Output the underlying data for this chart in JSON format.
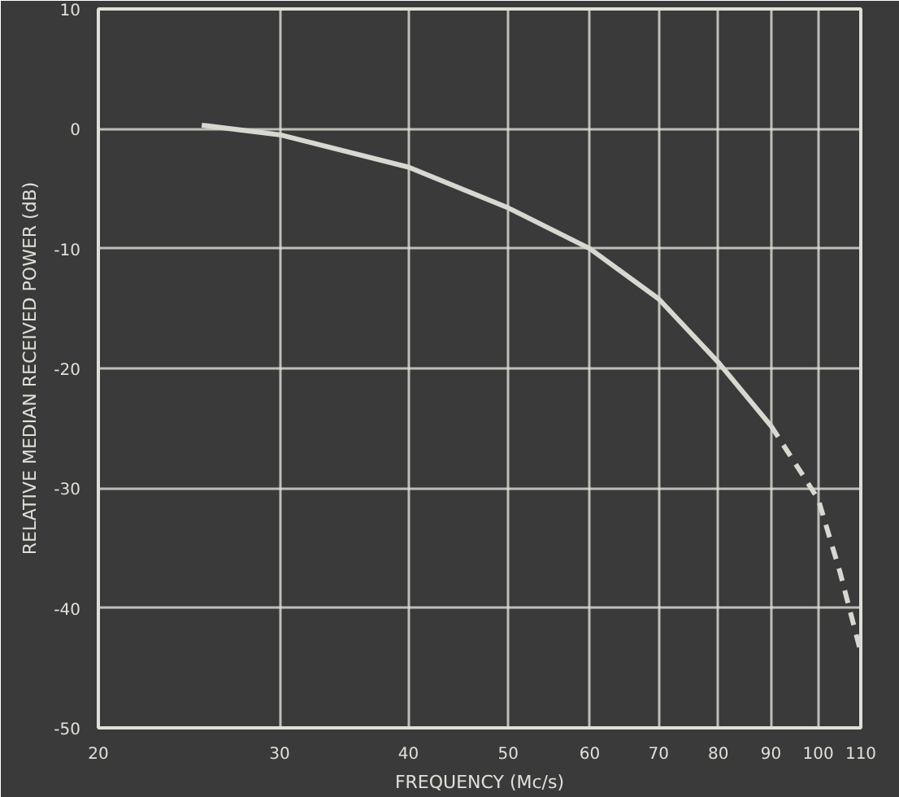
{
  "chart_data": {
    "type": "line",
    "xlabel": "FREQUENCY (Mc/s)",
    "ylabel": "RELATIVE MEDIAN RECEIVED POWER (dB)",
    "log": "x",
    "xlim": [
      20,
      110
    ],
    "ylim": [
      -50,
      10
    ],
    "xticks": [
      20,
      30,
      40,
      50,
      60,
      70,
      80,
      90,
      100,
      110
    ],
    "yticks": [
      -50,
      -40,
      -30,
      -20,
      -10,
      0,
      10
    ],
    "grid": true,
    "marker": "none",
    "series": [
      {
        "color": "#d8d8d0",
        "line_style": "solid",
        "x": [
          25.2,
          30,
          40,
          50,
          60,
          70,
          80,
          90
        ],
        "values": [
          0.3,
          -0.5,
          -3.2,
          -6.6,
          -10,
          -14.2,
          -19.5,
          -24.8
        ]
      },
      {
        "color": "#d8d8d0",
        "line_style": "dashed",
        "x": [
          90,
          100,
          105,
          110
        ],
        "values": [
          -24.8,
          -30.9,
          -37,
          -43.7
        ]
      }
    ]
  }
}
